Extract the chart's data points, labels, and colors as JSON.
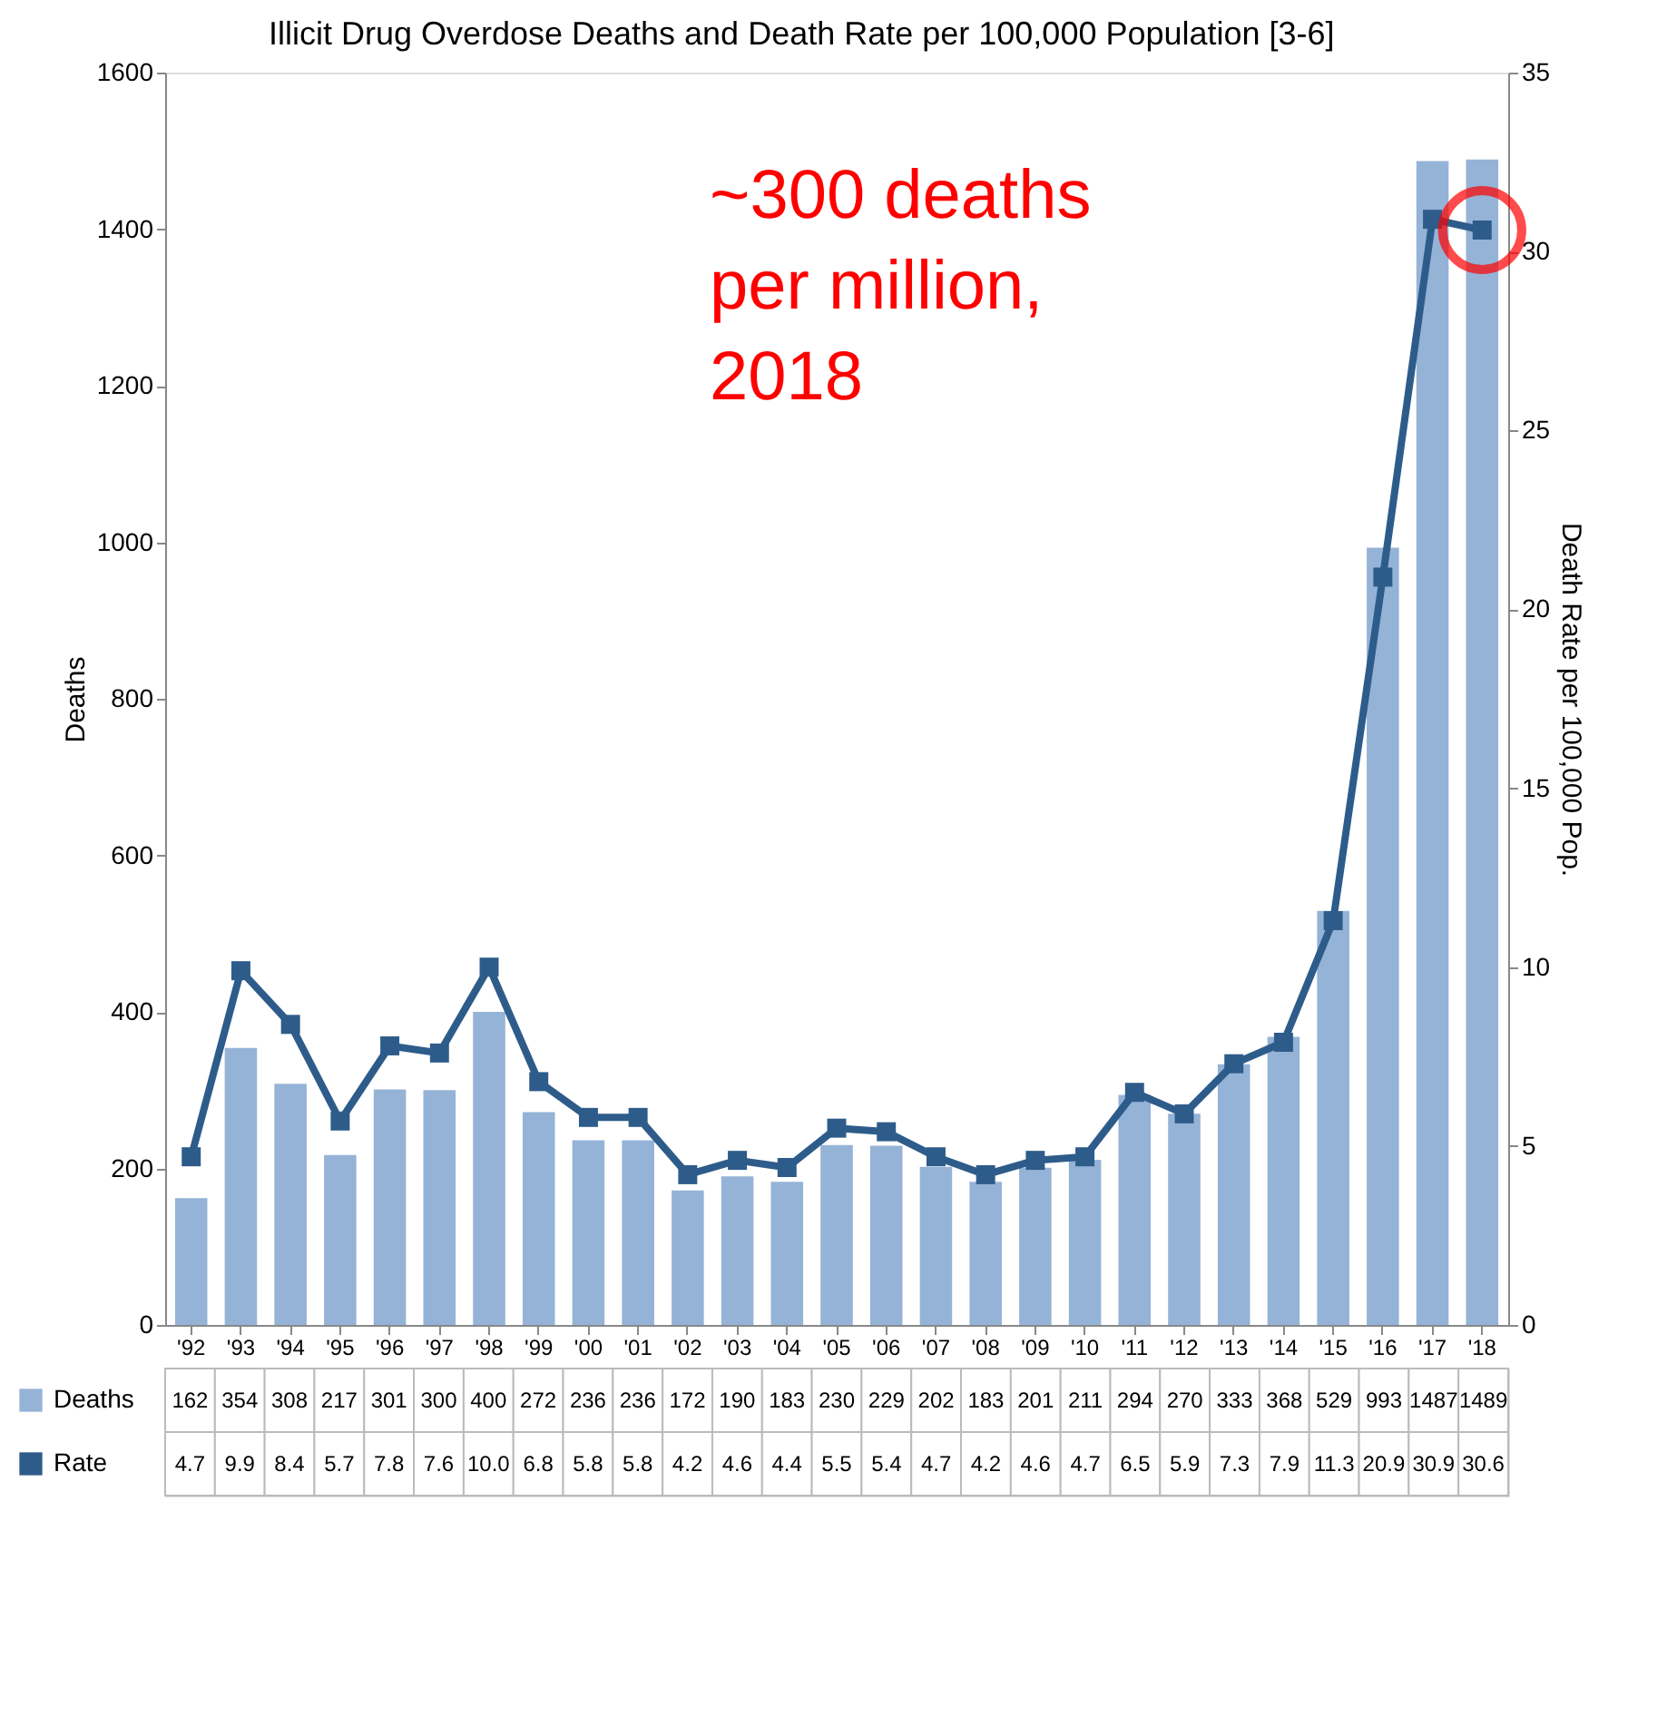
{
  "chart_data": {
    "type": "bar",
    "title": "Illicit Drug Overdose Deaths and Death Rate per 100,000 Population [3-6]",
    "categories": [
      "'92",
      "'93",
      "'94",
      "'95",
      "'96",
      "'97",
      "'98",
      "'99",
      "'00",
      "'01",
      "'02",
      "'03",
      "'04",
      "'05",
      "'06",
      "'07",
      "'08",
      "'09",
      "'10",
      "'11",
      "'12",
      "'13",
      "'14",
      "'15",
      "'16",
      "'17",
      "'18"
    ],
    "series": [
      {
        "name": "Deaths",
        "color": "#95b3d7",
        "values": [
          162,
          354,
          308,
          217,
          301,
          300,
          400,
          272,
          236,
          236,
          172,
          190,
          183,
          230,
          229,
          202,
          183,
          201,
          211,
          294,
          270,
          333,
          368,
          529,
          993,
          1487,
          1489
        ],
        "value_labels": [
          "162",
          "354",
          "308",
          "217",
          "301",
          "300",
          "400",
          "272",
          "236",
          "236",
          "172",
          "190",
          "183",
          "230",
          "229",
          "202",
          "183",
          "201",
          "211",
          "294",
          "270",
          "333",
          "368",
          "529",
          "993",
          "1487",
          "1489"
        ]
      },
      {
        "name": "Rate",
        "type": "line",
        "axis": "y2",
        "color": "#2e5c8a",
        "values": [
          4.7,
          9.9,
          8.4,
          5.7,
          7.8,
          7.6,
          10.0,
          6.8,
          5.8,
          5.8,
          4.2,
          4.6,
          4.4,
          5.5,
          5.4,
          4.7,
          4.2,
          4.6,
          4.7,
          6.5,
          5.9,
          7.3,
          7.9,
          11.3,
          20.9,
          30.9,
          30.6
        ],
        "value_labels": [
          "4.7",
          "9.9",
          "8.4",
          "5.7",
          "7.8",
          "7.6",
          "10.0",
          "6.8",
          "5.8",
          "5.8",
          "4.2",
          "4.6",
          "4.4",
          "5.5",
          "5.4",
          "4.7",
          "4.2",
          "4.6",
          "4.7",
          "6.5",
          "5.9",
          "7.3",
          "7.9",
          "11.3",
          "20.9",
          "30.9",
          "30.6"
        ]
      }
    ],
    "ylabel": "Deaths",
    "y2label": "Death Rate per 100,000 Pop.",
    "ylim": [
      0,
      1600
    ],
    "yticks": [
      0,
      200,
      400,
      600,
      800,
      1000,
      1200,
      1400,
      1600
    ],
    "y2lim": [
      0,
      35
    ],
    "y2ticks": [
      0,
      5,
      10,
      15,
      20,
      25,
      30,
      35
    ],
    "marker": "square",
    "line_style": "solid",
    "legend": "bottom",
    "annotations": [
      "~300 deaths\nper million,\n2018"
    ]
  }
}
